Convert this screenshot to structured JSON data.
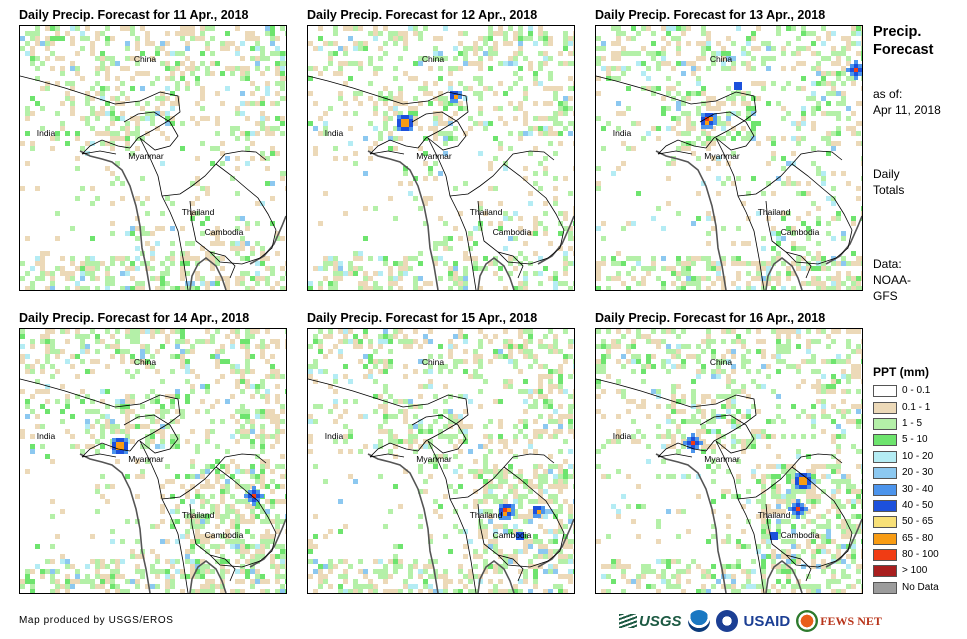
{
  "panels": [
    {
      "title": "Daily Precip. Forecast for 11 Apr., 2018",
      "seed": 11
    },
    {
      "title": "Daily Precip. Forecast for 12 Apr., 2018",
      "seed": 12
    },
    {
      "title": "Daily Precip. Forecast for 13 Apr., 2018",
      "seed": 13
    },
    {
      "title": "Daily Precip. Forecast for 14 Apr., 2018",
      "seed": 14
    },
    {
      "title": "Daily Precip. Forecast for 15 Apr., 2018",
      "seed": 15
    },
    {
      "title": "Daily Precip. Forecast for 16 Apr., 2018",
      "seed": 16
    }
  ],
  "map_labels": {
    "china": "China",
    "india": "India",
    "myanmar": "Myanmar",
    "thailand": "Thailand",
    "cambodia": "Cambodia"
  },
  "sidebar": {
    "title_line1": "Precip.",
    "title_line2": "Forecast",
    "asof_line1": "as of:",
    "asof_line2": "Apr 11, 2018",
    "totals_line1": "Daily",
    "totals_line2": "Totals",
    "data_line1": "Data:",
    "data_line2": "NOAA-",
    "data_line3": "GFS"
  },
  "legend": {
    "title": "PPT (mm)",
    "items": [
      {
        "label": "0 - 0.1",
        "color": "#ffffff"
      },
      {
        "label": "0.1 - 1",
        "color": "#ecd9b8"
      },
      {
        "label": "1 - 5",
        "color": "#b4f0a8"
      },
      {
        "label": "5 - 10",
        "color": "#6ee46e"
      },
      {
        "label": "10 - 20",
        "color": "#b4ecf4"
      },
      {
        "label": "20 - 30",
        "color": "#8cc8f0"
      },
      {
        "label": "30 - 40",
        "color": "#4c94ec"
      },
      {
        "label": "40 - 50",
        "color": "#1c50dc"
      },
      {
        "label": "50 - 65",
        "color": "#f8e078"
      },
      {
        "label": "65 - 80",
        "color": "#f89c14"
      },
      {
        "label": "80 - 100",
        "color": "#f03c14"
      },
      {
        "label": "> 100",
        "color": "#a81e1e"
      },
      {
        "label": "No Data",
        "color": "#9c9c9c"
      }
    ]
  },
  "footer": {
    "credit": "Map produced by USGS/EROS",
    "usgs": "USGS",
    "usaid": "USAID",
    "fews": "FEWS NET"
  }
}
